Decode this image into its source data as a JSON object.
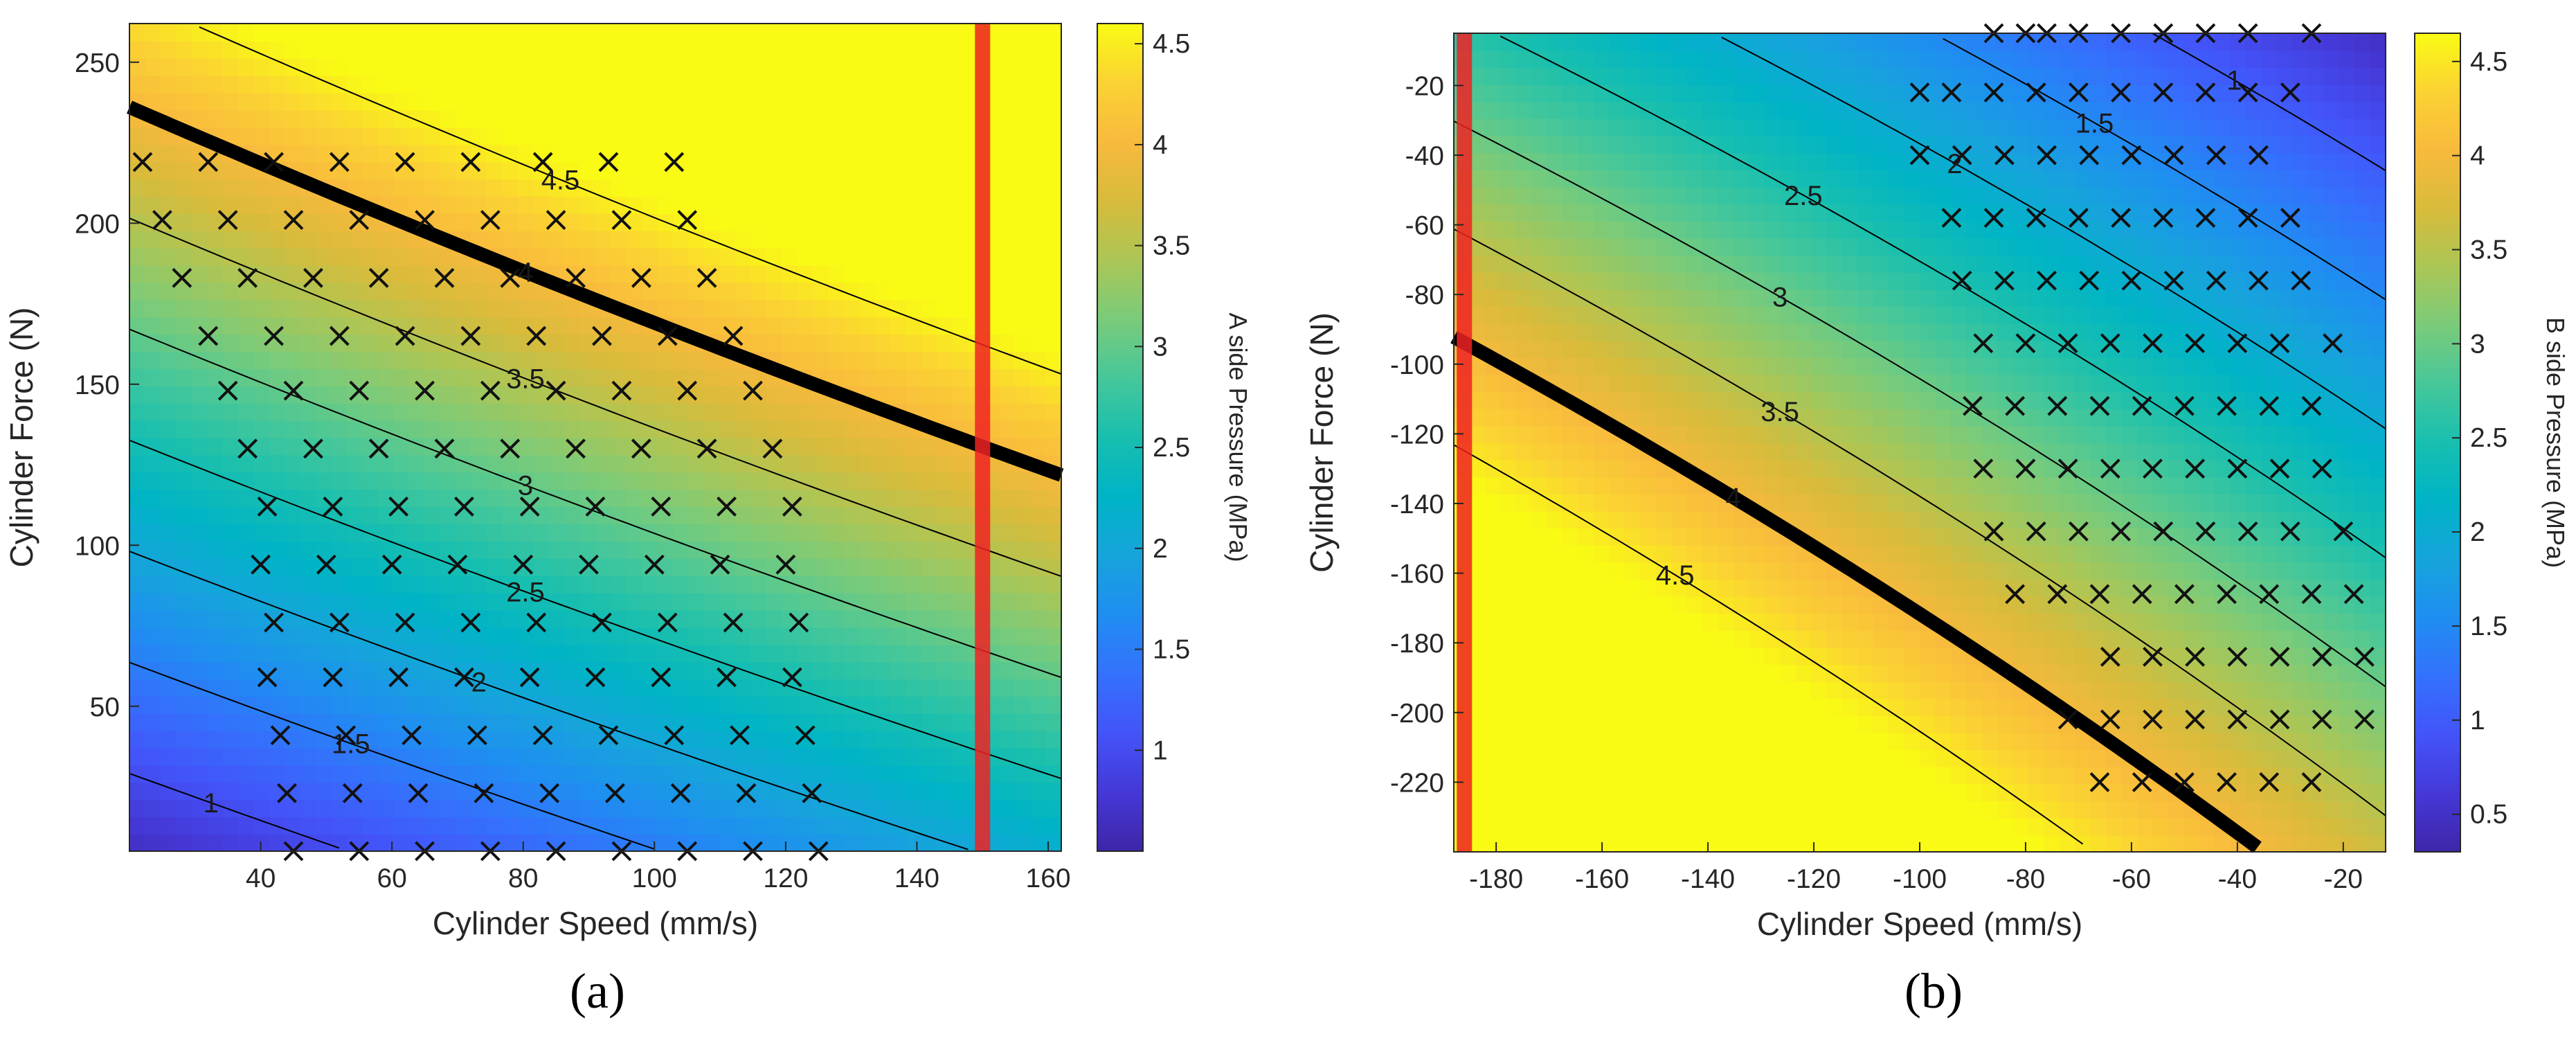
{
  "colors": {
    "parula": [
      "#3e26a8",
      "#4538d7",
      "#4354f9",
      "#3471fc",
      "#1f8ef1",
      "#16a4db",
      "#00b4c6",
      "#18bfaf",
      "#46c79a",
      "#7acb7a",
      "#abc656",
      "#d8bb3b",
      "#f8ba3d",
      "#fbd233",
      "#f9fb14"
    ],
    "limit_line": "#ee2222",
    "marker": "#111111"
  },
  "chart_data": [
    {
      "type": "heatmap",
      "panel_label": "(a)",
      "xlabel": "Cylinder Speed (mm/s)",
      "ylabel": "Cylinder Force (N)",
      "colorbar_label": "A side Pressure (MPa)",
      "xlim": [
        20,
        162
      ],
      "ylim": [
        5,
        262
      ],
      "xticks": [
        40,
        60,
        80,
        100,
        120,
        140,
        160
      ],
      "yticks": [
        50,
        100,
        150,
        200,
        250
      ],
      "colorbar_ticks": [
        1,
        1.5,
        2,
        2.5,
        3,
        3.5,
        4,
        4.5
      ],
      "colorbar_range": [
        0.5,
        4.6
      ],
      "contour_levels": [
        1,
        1.5,
        2,
        2.5,
        3,
        3.5,
        4,
        4.5
      ],
      "highlight_level": 4,
      "vertical_limit_x": 150,
      "grid": false,
      "measurement_points": [
        [
          22,
          219
        ],
        [
          32,
          219
        ],
        [
          42,
          219
        ],
        [
          52,
          219
        ],
        [
          62,
          219
        ],
        [
          72,
          219
        ],
        [
          83,
          219
        ],
        [
          93,
          219
        ],
        [
          103,
          219
        ],
        [
          25,
          201
        ],
        [
          35,
          201
        ],
        [
          45,
          201
        ],
        [
          55,
          201
        ],
        [
          65,
          201
        ],
        [
          75,
          201
        ],
        [
          85,
          201
        ],
        [
          95,
          201
        ],
        [
          105,
          201
        ],
        [
          28,
          183
        ],
        [
          38,
          183
        ],
        [
          48,
          183
        ],
        [
          58,
          183
        ],
        [
          68,
          183
        ],
        [
          78,
          183
        ],
        [
          88,
          183
        ],
        [
          98,
          183
        ],
        [
          108,
          183
        ],
        [
          32,
          165
        ],
        [
          42,
          165
        ],
        [
          52,
          165
        ],
        [
          62,
          165
        ],
        [
          72,
          165
        ],
        [
          82,
          165
        ],
        [
          92,
          165
        ],
        [
          102,
          165
        ],
        [
          112,
          165
        ],
        [
          35,
          148
        ],
        [
          45,
          148
        ],
        [
          55,
          148
        ],
        [
          65,
          148
        ],
        [
          75,
          148
        ],
        [
          85,
          148
        ],
        [
          95,
          148
        ],
        [
          105,
          148
        ],
        [
          115,
          148
        ],
        [
          38,
          130
        ],
        [
          48,
          130
        ],
        [
          58,
          130
        ],
        [
          68,
          130
        ],
        [
          78,
          130
        ],
        [
          88,
          130
        ],
        [
          98,
          130
        ],
        [
          108,
          130
        ],
        [
          118,
          130
        ],
        [
          41,
          112
        ],
        [
          51,
          112
        ],
        [
          61,
          112
        ],
        [
          71,
          112
        ],
        [
          81,
          112
        ],
        [
          91,
          112
        ],
        [
          101,
          112
        ],
        [
          111,
          112
        ],
        [
          121,
          112
        ],
        [
          40,
          94
        ],
        [
          50,
          94
        ],
        [
          60,
          94
        ],
        [
          70,
          94
        ],
        [
          80,
          94
        ],
        [
          90,
          94
        ],
        [
          100,
          94
        ],
        [
          110,
          94
        ],
        [
          120,
          94
        ],
        [
          42,
          76
        ],
        [
          52,
          76
        ],
        [
          62,
          76
        ],
        [
          72,
          76
        ],
        [
          82,
          76
        ],
        [
          92,
          76
        ],
        [
          102,
          76
        ],
        [
          112,
          76
        ],
        [
          122,
          76
        ],
        [
          41,
          59
        ],
        [
          51,
          59
        ],
        [
          61,
          59
        ],
        [
          71,
          59
        ],
        [
          81,
          59
        ],
        [
          91,
          59
        ],
        [
          101,
          59
        ],
        [
          111,
          59
        ],
        [
          121,
          59
        ],
        [
          43,
          41
        ],
        [
          53,
          41
        ],
        [
          63,
          41
        ],
        [
          73,
          41
        ],
        [
          83,
          41
        ],
        [
          93,
          41
        ],
        [
          103,
          41
        ],
        [
          113,
          41
        ],
        [
          123,
          41
        ],
        [
          44,
          23
        ],
        [
          54,
          23
        ],
        [
          64,
          23
        ],
        [
          74,
          23
        ],
        [
          84,
          23
        ],
        [
          94,
          23
        ],
        [
          104,
          23
        ],
        [
          114,
          23
        ],
        [
          124,
          23
        ],
        [
          45,
          5
        ],
        [
          55,
          5
        ],
        [
          65,
          5
        ],
        [
          75,
          5
        ],
        [
          85,
          5
        ],
        [
          95,
          5
        ],
        [
          105,
          5
        ],
        [
          115,
          5
        ],
        [
          125,
          5
        ]
      ]
    },
    {
      "type": "heatmap",
      "panel_label": "(b)",
      "xlabel": "Cylinder Speed (mm/s)",
      "ylabel": "Cylinder Force (N)",
      "colorbar_label": "B side Pressure (MPa)",
      "xlim": [
        -188,
        -12
      ],
      "ylim": [
        -240,
        -5
      ],
      "xticks": [
        -180,
        -160,
        -140,
        -120,
        -100,
        -80,
        -60,
        -40,
        -20
      ],
      "yticks": [
        -20,
        -40,
        -60,
        -80,
        -100,
        -120,
        -140,
        -160,
        -180,
        -200,
        -220
      ],
      "colorbar_ticks": [
        0.5,
        1,
        1.5,
        2,
        2.5,
        3,
        3.5,
        4,
        4.5
      ],
      "colorbar_range": [
        0.3,
        4.65
      ],
      "contour_levels": [
        1,
        1.5,
        2,
        2.5,
        3,
        3.5,
        4,
        4.5
      ],
      "highlight_level": 4,
      "vertical_limit_x": -186,
      "grid": false,
      "measurement_points": [
        [
          -86,
          -5
        ],
        [
          -80,
          -5
        ],
        [
          -76,
          -5
        ],
        [
          -70,
          -5
        ],
        [
          -62,
          -5
        ],
        [
          -54,
          -5
        ],
        [
          -46,
          -5
        ],
        [
          -38,
          -5
        ],
        [
          -26,
          -5
        ],
        [
          -100,
          -22
        ],
        [
          -94,
          -22
        ],
        [
          -86,
          -22
        ],
        [
          -78,
          -22
        ],
        [
          -70,
          -22
        ],
        [
          -62,
          -22
        ],
        [
          -54,
          -22
        ],
        [
          -46,
          -22
        ],
        [
          -38,
          -22
        ],
        [
          -30,
          -22
        ],
        [
          -100,
          -40
        ],
        [
          -92,
          -40
        ],
        [
          -84,
          -40
        ],
        [
          -76,
          -40
        ],
        [
          -68,
          -40
        ],
        [
          -60,
          -40
        ],
        [
          -52,
          -40
        ],
        [
          -44,
          -40
        ],
        [
          -36,
          -40
        ],
        [
          -94,
          -58
        ],
        [
          -86,
          -58
        ],
        [
          -78,
          -58
        ],
        [
          -70,
          -58
        ],
        [
          -62,
          -58
        ],
        [
          -54,
          -58
        ],
        [
          -46,
          -58
        ],
        [
          -38,
          -58
        ],
        [
          -30,
          -58
        ],
        [
          -92,
          -76
        ],
        [
          -84,
          -76
        ],
        [
          -76,
          -76
        ],
        [
          -68,
          -76
        ],
        [
          -60,
          -76
        ],
        [
          -52,
          -76
        ],
        [
          -44,
          -76
        ],
        [
          -36,
          -76
        ],
        [
          -28,
          -76
        ],
        [
          -88,
          -94
        ],
        [
          -80,
          -94
        ],
        [
          -72,
          -94
        ],
        [
          -64,
          -94
        ],
        [
          -56,
          -94
        ],
        [
          -48,
          -94
        ],
        [
          -40,
          -94
        ],
        [
          -32,
          -94
        ],
        [
          -22,
          -94
        ],
        [
          -90,
          -112
        ],
        [
          -82,
          -112
        ],
        [
          -74,
          -112
        ],
        [
          -66,
          -112
        ],
        [
          -58,
          -112
        ],
        [
          -50,
          -112
        ],
        [
          -42,
          -112
        ],
        [
          -34,
          -112
        ],
        [
          -26,
          -112
        ],
        [
          -88,
          -130
        ],
        [
          -80,
          -130
        ],
        [
          -72,
          -130
        ],
        [
          -64,
          -130
        ],
        [
          -56,
          -130
        ],
        [
          -48,
          -130
        ],
        [
          -40,
          -130
        ],
        [
          -32,
          -130
        ],
        [
          -24,
          -130
        ],
        [
          -86,
          -148
        ],
        [
          -78,
          -148
        ],
        [
          -70,
          -148
        ],
        [
          -62,
          -148
        ],
        [
          -54,
          -148
        ],
        [
          -46,
          -148
        ],
        [
          -38,
          -148
        ],
        [
          -30,
          -148
        ],
        [
          -20,
          -148
        ],
        [
          -82,
          -166
        ],
        [
          -74,
          -166
        ],
        [
          -66,
          -166
        ],
        [
          -58,
          -166
        ],
        [
          -50,
          -166
        ],
        [
          -42,
          -166
        ],
        [
          -34,
          -166
        ],
        [
          -26,
          -166
        ],
        [
          -18,
          -166
        ],
        [
          -64,
          -184
        ],
        [
          -56,
          -184
        ],
        [
          -48,
          -184
        ],
        [
          -40,
          -184
        ],
        [
          -32,
          -184
        ],
        [
          -24,
          -184
        ],
        [
          -16,
          -184
        ],
        [
          -72,
          -202
        ],
        [
          -64,
          -202
        ],
        [
          -56,
          -202
        ],
        [
          -48,
          -202
        ],
        [
          -40,
          -202
        ],
        [
          -32,
          -202
        ],
        [
          -24,
          -202
        ],
        [
          -16,
          -202
        ],
        [
          -66,
          -220
        ],
        [
          -58,
          -220
        ],
        [
          -50,
          -220
        ],
        [
          -42,
          -220
        ],
        [
          -34,
          -220
        ],
        [
          -26,
          -220
        ]
      ]
    }
  ]
}
